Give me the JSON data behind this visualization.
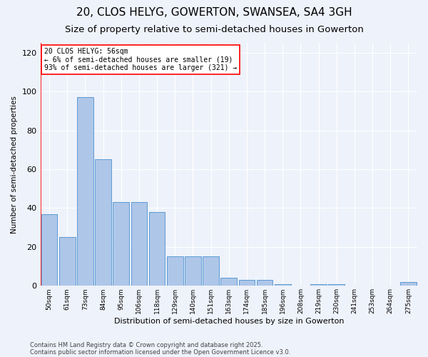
{
  "title1": "20, CLOS HELYG, GOWERTON, SWANSEA, SA4 3GH",
  "title2": "Size of property relative to semi-detached houses in Gowerton",
  "xlabel": "Distribution of semi-detached houses by size in Gowerton",
  "ylabel": "Number of semi-detached properties",
  "categories": [
    "50sqm",
    "61sqm",
    "73sqm",
    "84sqm",
    "95sqm",
    "106sqm",
    "118sqm",
    "129sqm",
    "140sqm",
    "151sqm",
    "163sqm",
    "174sqm",
    "185sqm",
    "196sqm",
    "208sqm",
    "219sqm",
    "230sqm",
    "241sqm",
    "253sqm",
    "264sqm",
    "275sqm"
  ],
  "values": [
    37,
    25,
    97,
    65,
    43,
    43,
    38,
    15,
    15,
    15,
    4,
    3,
    3,
    1,
    0,
    1,
    1,
    0,
    0,
    0,
    2
  ],
  "bar_color": "#aec6e8",
  "bar_edge_color": "#5b9bd5",
  "vline_color": "red",
  "annotation_text": "20 CLOS HELYG: 56sqm\n← 6% of semi-detached houses are smaller (19)\n93% of semi-detached houses are larger (321) →",
  "annotation_box_color": "white",
  "annotation_box_edge_color": "red",
  "ylim": [
    0,
    125
  ],
  "yticks": [
    0,
    20,
    40,
    60,
    80,
    100,
    120
  ],
  "footer1": "Contains HM Land Registry data © Crown copyright and database right 2025.",
  "footer2": "Contains public sector information licensed under the Open Government Licence v3.0.",
  "bg_color": "#eef2fa",
  "grid_color": "white",
  "title1_fontsize": 11,
  "title2_fontsize": 9.5
}
